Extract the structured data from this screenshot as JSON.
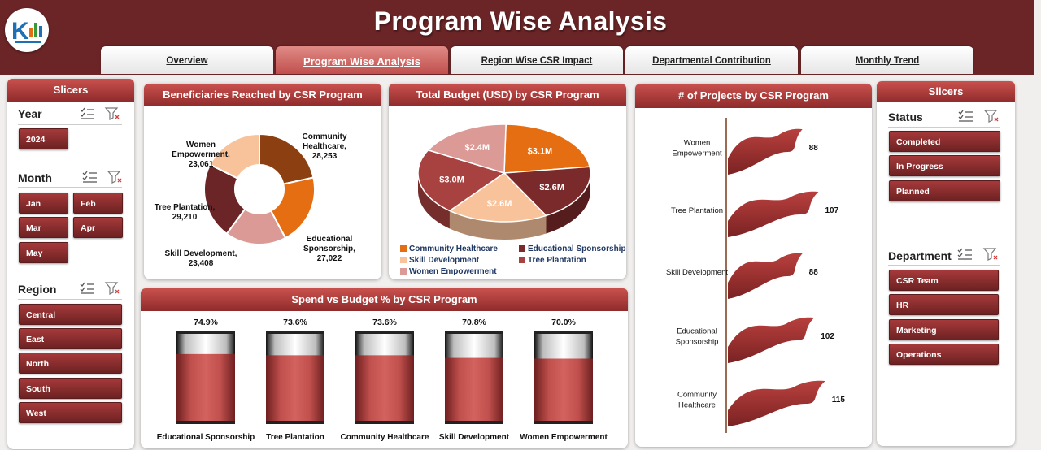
{
  "header": {
    "title": "Program Wise Analysis"
  },
  "tabs": [
    {
      "label": "Overview",
      "active": false
    },
    {
      "label": "Program Wise Analysis",
      "active": true
    },
    {
      "label": "Region Wise CSR Impact",
      "active": false
    },
    {
      "label": "Departmental Contribution",
      "active": false
    },
    {
      "label": "Monthly Trend",
      "active": false
    }
  ],
  "left_slicers": {
    "title": "Slicers",
    "year": {
      "label": "Year",
      "items": [
        "2024"
      ]
    },
    "month": {
      "label": "Month",
      "items": [
        "Jan",
        "Feb",
        "Mar",
        "Apr",
        "May"
      ]
    },
    "region": {
      "label": "Region",
      "items": [
        "Central",
        "East",
        "North",
        "South",
        "West"
      ]
    }
  },
  "right_slicers": {
    "title": "Slicers",
    "status": {
      "label": "Status",
      "items": [
        "Completed",
        "In Progress",
        "Planned"
      ]
    },
    "department": {
      "label": "Department",
      "items": [
        "CSR Team",
        "HR",
        "Marketing",
        "Operations"
      ]
    }
  },
  "colors": {
    "header": "#6b2527",
    "accent": "#c1504d",
    "chip": "#8f2b2c"
  },
  "chart_data": [
    {
      "type": "pie",
      "title": "Beneficiaries Reached by CSR Program",
      "categories": [
        "Community Healthcare",
        "Educational Sponsorship",
        "Skill Development",
        "Tree Plantation",
        "Women Empowerment"
      ],
      "values": [
        28253,
        27022,
        23408,
        29210,
        23061
      ],
      "labels": [
        [
          "Community",
          "Healthcare,",
          "28,253"
        ],
        [
          "Educational",
          "Sponsorship,",
          "27,022"
        ],
        [
          "Skill Development,",
          "23,408"
        ],
        [
          "Tree Plantation,",
          "29,210"
        ],
        [
          "Women",
          "Empowerment,",
          "23,061"
        ]
      ],
      "colors": [
        "#8c3f10",
        "#e56e13",
        "#dc9a96",
        "#6b2527",
        "#f8c39b"
      ]
    },
    {
      "type": "pie",
      "title": "Total Budget (USD) by CSR Program",
      "categories": [
        "Community Healthcare",
        "Educational Sponsorship",
        "Skill Development",
        "Tree Plantation",
        "Women Empowerment"
      ],
      "values": [
        3.1,
        2.6,
        2.6,
        3.0,
        2.4
      ],
      "data_labels": [
        "$3.1M",
        "$2.6M",
        "$2.6M",
        "$3.0M",
        "$2.4M"
      ],
      "colors": [
        "#e56e13",
        "#7a2a2a",
        "#f8c39b",
        "#a84240",
        "#dc9a96"
      ],
      "legend": [
        "Community Healthcare",
        "Educational Sponsorship",
        "Skill Development",
        "Tree Plantation",
        "Women Empowerment"
      ],
      "legend_colors": [
        "#e56e13",
        "#7a2a2a",
        "#f8c39b",
        "#a84240",
        "#dc9a96"
      ]
    },
    {
      "type": "bar",
      "title": "Spend vs Budget %  by CSR Program",
      "categories": [
        "Educational Sponsorship",
        "Tree Plantation",
        "Community Healthcare",
        "Skill Development",
        "Women Empowerment"
      ],
      "values": [
        74.9,
        73.6,
        73.6,
        70.8,
        70.0
      ],
      "data_labels": [
        "74.9%",
        "73.6%",
        "73.6%",
        "70.8%",
        "70.0%"
      ],
      "ylim": [
        0,
        100
      ]
    },
    {
      "type": "bar",
      "title": "# of Projects by CSR Program",
      "categories": [
        "Women Empowerment",
        "Tree Plantation",
        "Skill Development",
        "Educational Sponsorship",
        "Community Healthcare"
      ],
      "category_lines": [
        [
          "Women",
          "Empowerment"
        ],
        [
          "Tree Plantation"
        ],
        [
          "Skill Development"
        ],
        [
          "Educational",
          "Sponsorship"
        ],
        [
          "Community",
          "Healthcare"
        ]
      ],
      "values": [
        88,
        107,
        88,
        102,
        115
      ],
      "data_labels": [
        "88",
        "107",
        "88",
        "102",
        "115"
      ]
    }
  ]
}
